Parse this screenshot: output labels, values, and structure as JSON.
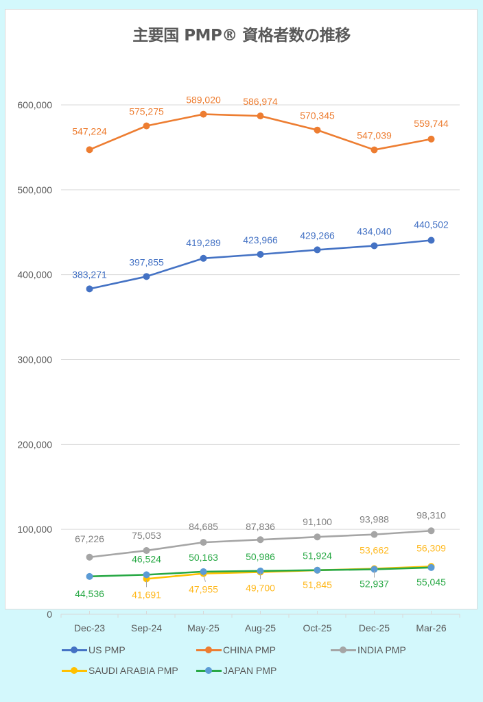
{
  "chart_data": {
    "type": "line",
    "title": "主要国 PMP® 資格者数の推移",
    "xlabel": "",
    "ylabel": "",
    "categories": [
      "Dec-23",
      "Sep-24",
      "May-25",
      "Aug-25",
      "Oct-25",
      "Dec-25",
      "Mar-26"
    ],
    "ylim": [
      0,
      600000
    ],
    "yticks": [
      0,
      100000,
      200000,
      300000,
      400000,
      500000,
      600000
    ],
    "ytick_labels": [
      "0",
      "100,000",
      "200,000",
      "300,000",
      "400,000",
      "500,000",
      "600,000"
    ],
    "grid": true,
    "legend_position": "bottom",
    "series": [
      {
        "name": "US PMP",
        "line_color": "#4472c4",
        "marker_color": "#4472c4",
        "label_color": "#4472c4",
        "values": [
          383271,
          397855,
          419289,
          423966,
          429266,
          434040,
          440502
        ],
        "labels": [
          "383,271",
          "397,855",
          "419,289",
          "423,966",
          "429,266",
          "434,040",
          "440,502"
        ],
        "label_position": "above"
      },
      {
        "name": "CHINA PMP",
        "line_color": "#ed7d31",
        "marker_color": "#ed7d31",
        "label_color": "#ed7d31",
        "values": [
          547224,
          575275,
          589020,
          586974,
          570345,
          547039,
          559744
        ],
        "labels": [
          "547,224",
          "575,275",
          "589,020",
          "586,974",
          "570,345",
          "547,039",
          "559,744"
        ],
        "label_position": "above"
      },
      {
        "name": "INDIA PMP",
        "line_color": "#a5a5a5",
        "marker_color": "#a5a5a5",
        "label_color": "#7f7f7f",
        "values": [
          67226,
          75053,
          84685,
          87836,
          91100,
          93988,
          98310
        ],
        "labels": [
          "67,226",
          "75,053",
          "84,685",
          "87,836",
          "91,100",
          "93,988",
          "98,310"
        ],
        "label_position": "above"
      },
      {
        "name": "SAUDI ARABIA PMP",
        "line_color": "#ffc000",
        "marker_color": "#ffc000",
        "label_color": "#ffb81c",
        "values": [
          null,
          41691,
          47955,
          49700,
          51845,
          53662,
          56309
        ],
        "labels": [
          null,
          "41,691",
          "47,955",
          "49,700",
          "51,845",
          "53,662",
          "56,309"
        ],
        "label_position": "mixed"
      },
      {
        "name": "JAPAN PMP",
        "line_color": "#27a844",
        "marker_color": "#5b9bd5",
        "label_color": "#27a844",
        "values": [
          44536,
          46524,
          50163,
          50986,
          51924,
          52937,
          55045
        ],
        "labels": [
          "44,536",
          "46,524",
          "50,163",
          "50,986",
          "51,924",
          "52,937",
          "55,045"
        ],
        "label_position": "mixed"
      }
    ]
  }
}
